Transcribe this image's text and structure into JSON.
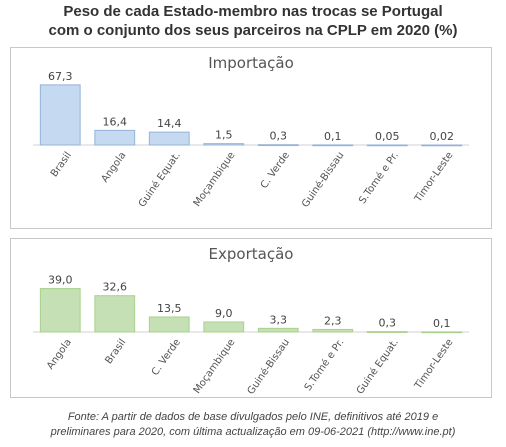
{
  "title_line1": "Peso de cada Estado-membro nas trocas se Portugal",
  "title_line2": "com o conjunto dos seus parceiros na CPLP em 2020 (%)",
  "source_line1": "Fonte: A partir de dados de base divulgados pelo INE, definitivos até 2019 e",
  "source_line2": "preliminares para 2020, com última actualização em 09-06-2021  (http://www.ine.pt)",
  "chart_data": [
    {
      "type": "bar",
      "title": "Importação",
      "categories": [
        "Brasil",
        "Angola",
        "Guiné Equat.",
        "Moçambique",
        "C. Verde",
        "Guiné-Bissau",
        "S.Tomé e Pr.",
        "Timor-Leste"
      ],
      "values": [
        67.3,
        16.4,
        14.4,
        1.5,
        0.3,
        0.1,
        0.05,
        0.02
      ],
      "value_labels": [
        "67,3",
        "16,4",
        "14,4",
        "1,5",
        "0,3",
        "0,1",
        "0,05",
        "0,02"
      ],
      "ylim": [
        0,
        75
      ],
      "bar_color": "#c5d9f1",
      "bar_stroke": "#95b3d7",
      "grid": false
    },
    {
      "type": "bar",
      "title": "Exportação",
      "categories": [
        "Angola",
        "Brasil",
        "C. Verde",
        "Moçambique",
        "Guiné-Bissau",
        "S.Tomé e Pr.",
        "Guiné Equat.",
        "Timor-Leste"
      ],
      "values": [
        39.0,
        32.6,
        13.5,
        9.0,
        3.3,
        2.3,
        0.3,
        0.1
      ],
      "value_labels": [
        "39,0",
        "32,6",
        "13,5",
        "9,0",
        "3,3",
        "2,3",
        "0,3",
        "0,1"
      ],
      "ylim": [
        0,
        44
      ],
      "bar_color": "#c4e0b4",
      "bar_stroke": "#a9d18e",
      "grid": false
    }
  ]
}
